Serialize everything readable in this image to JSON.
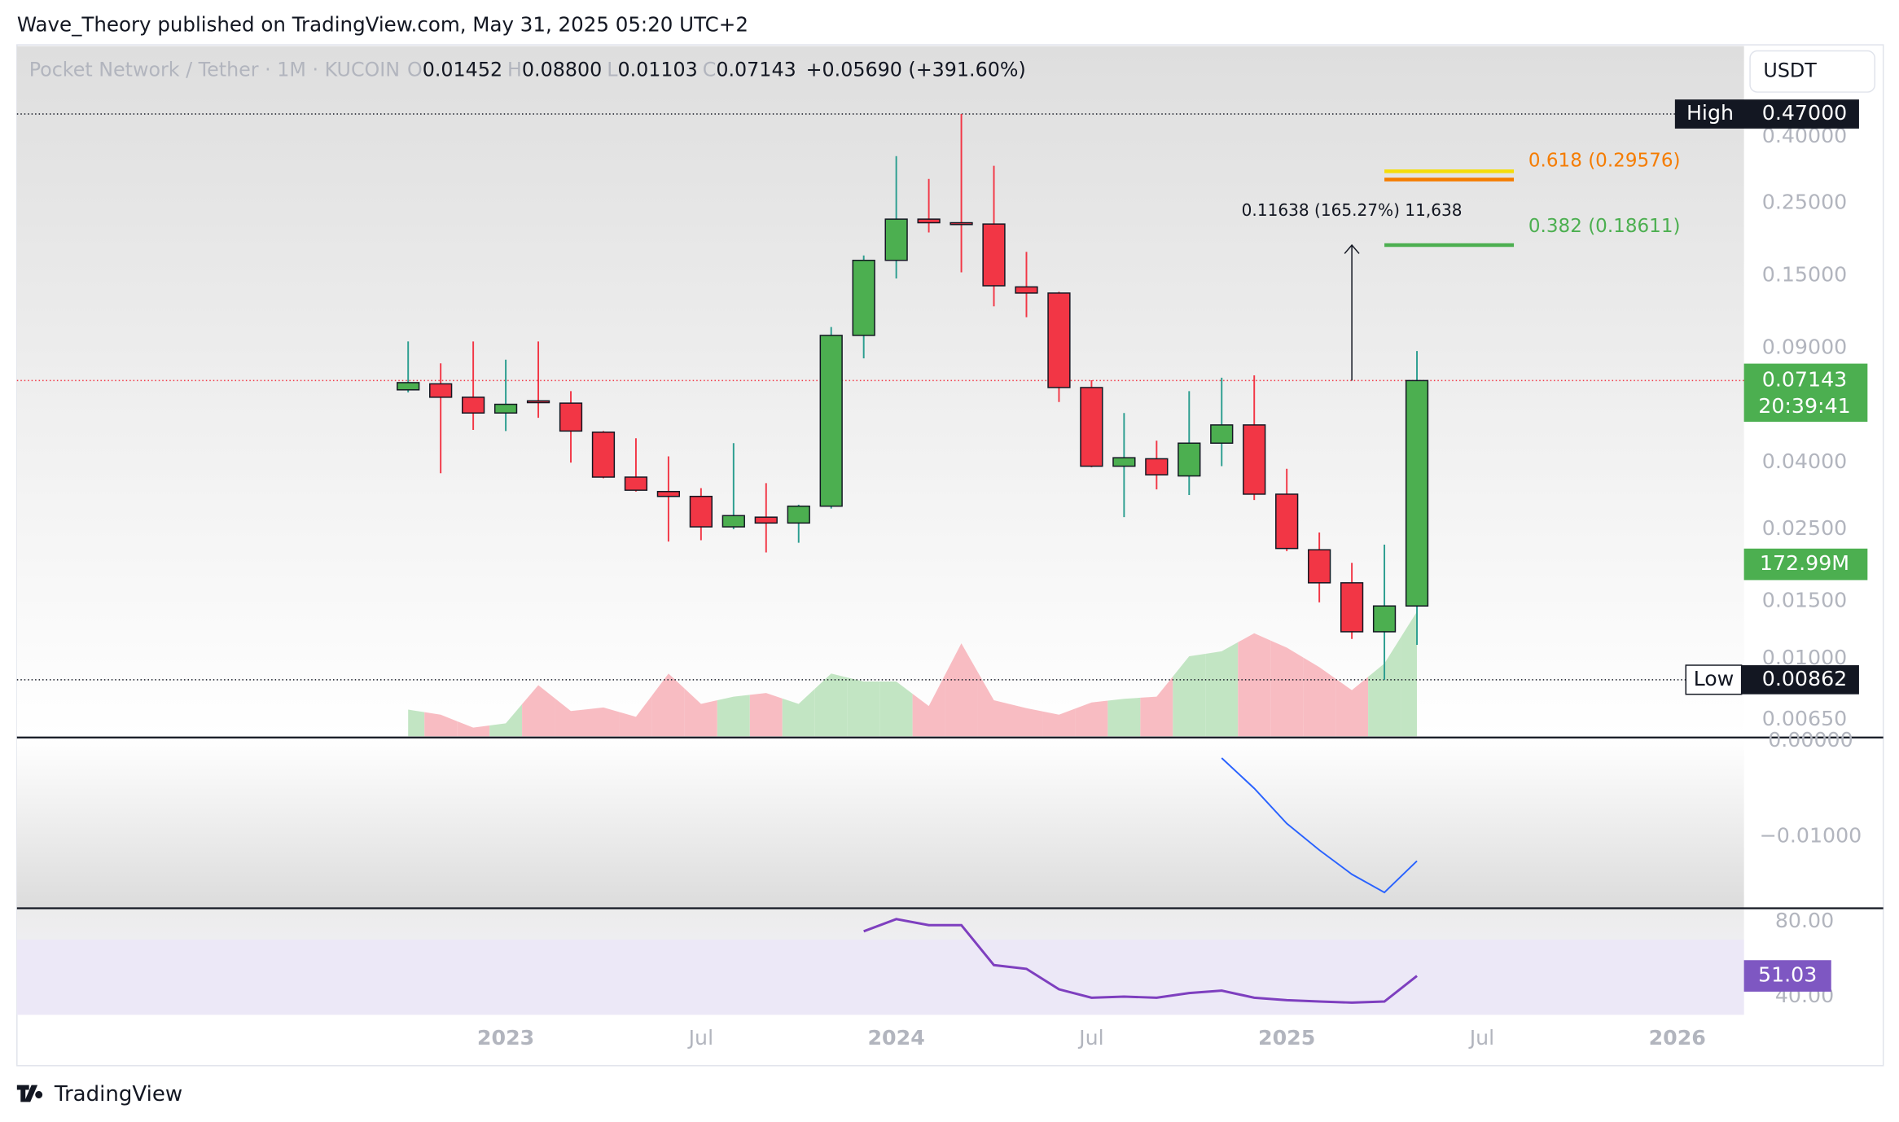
{
  "page": {
    "byline": "Wave_Theory published on TradingView.com, May 31, 2025 05:20 UTC+2",
    "brand": "TradingView",
    "currency": "USDT"
  },
  "chart_data": {
    "type": "candlestick",
    "symbol": "Pocket Network / Tether · 1M · KUCOIN",
    "legend": [
      {
        "key": "O",
        "value": "0.01452"
      },
      {
        "key": "H",
        "value": "0.08800"
      },
      {
        "key": "L",
        "value": "0.01103"
      },
      {
        "key": "C",
        "value": "0.07143"
      }
    ],
    "change": "+0.05690 (+391.60%)",
    "log_scale": true,
    "ylim": [
      0.00578,
      0.76
    ],
    "yticks": [
      {
        "value": 0.4,
        "label": "0.40000"
      },
      {
        "value": 0.25,
        "label": "0.25000"
      },
      {
        "value": 0.15,
        "label": "0.15000"
      },
      {
        "value": 0.09,
        "label": "0.09000"
      },
      {
        "value": 0.04,
        "label": "0.04000"
      },
      {
        "value": 0.025,
        "label": "0.02500"
      },
      {
        "value": 0.015,
        "label": "0.01500"
      },
      {
        "value": 0.01,
        "label": "0.01000"
      },
      {
        "value": 0.0065,
        "label": "0.00650"
      }
    ],
    "up_color": "#4caf50",
    "down_color": "#f23645",
    "categories": [
      null,
      null,
      null,
      "2023",
      null,
      null,
      null,
      null,
      null,
      "Jul",
      null,
      null,
      null,
      null,
      null,
      "2024",
      null,
      null,
      null,
      null,
      null,
      "Jul",
      null,
      null,
      null,
      null,
      null,
      "2025",
      null,
      null,
      null,
      null,
      null,
      "Jul",
      null,
      null,
      null,
      null,
      null,
      "2026",
      null,
      null
    ],
    "open": [
      0.0669,
      0.0698,
      0.0635,
      0.0568,
      0.0619,
      0.0609,
      0.0496,
      0.0361,
      0.0326,
      0.0315,
      0.0254,
      0.0272,
      0.0261,
      0.0294,
      0.0983,
      0.1671,
      0.2236,
      0.218,
      0.216,
      0.1385,
      0.1326,
      0.068,
      0.039,
      0.0411,
      0.0364,
      0.0459,
      0.0522,
      0.032,
      0.0216,
      0.0171,
      0.0121,
      0.01452,
      null,
      null,
      null,
      null,
      null,
      null,
      null,
      null,
      null,
      null
    ],
    "high": [
      0.0942,
      0.0807,
      0.0942,
      0.0828,
      0.0942,
      0.0663,
      0.05,
      0.0475,
      0.0418,
      0.0334,
      0.0459,
      0.0346,
      0.0297,
      0.1043,
      0.1729,
      0.349,
      0.297,
      0.47,
      0.326,
      0.1774,
      0.1338,
      0.0716,
      0.0568,
      0.0467,
      0.0663,
      0.0729,
      0.0741,
      0.0383,
      0.0244,
      0.0197,
      0.0224,
      0.088,
      null,
      null,
      null,
      null,
      null,
      null,
      null,
      null,
      null,
      null
    ],
    "low": [
      0.0657,
      0.0371,
      0.0504,
      0.05,
      0.0549,
      0.04,
      0.0358,
      0.0326,
      0.0229,
      0.0231,
      0.025,
      0.0212,
      0.0227,
      0.0289,
      0.0836,
      0.147,
      0.2035,
      0.1535,
      0.1207,
      0.1118,
      0.0614,
      0.0387,
      0.0272,
      0.0331,
      0.0318,
      0.039,
      0.0307,
      0.0214,
      0.0149,
      0.0115,
      0.00862,
      0.01103,
      null,
      null,
      null,
      null,
      null,
      null,
      null,
      null,
      null,
      null
    ],
    "close": [
      0.0704,
      0.0635,
      0.0568,
      0.0604,
      0.0614,
      0.05,
      0.0361,
      0.0329,
      0.0315,
      0.0254,
      0.0275,
      0.0261,
      0.0294,
      0.0983,
      0.1671,
      0.2236,
      0.218,
      0.216,
      0.1396,
      0.1326,
      0.068,
      0.039,
      0.0414,
      0.0367,
      0.0459,
      0.0522,
      0.032,
      0.0218,
      0.0171,
      0.0121,
      0.01452,
      0.07143,
      null,
      null,
      null,
      null,
      null,
      null,
      null,
      null,
      null,
      null
    ],
    "high_marker": {
      "text": "High",
      "value": 0.47,
      "label": "0.47000"
    },
    "low_marker": {
      "text": "Low"
    },
    "countdown": "20:39:41",
    "volume": {
      "values": [
        37000000,
        30000000,
        12000000,
        18000000,
        71000000,
        35000000,
        40000000,
        27000000,
        87000000,
        45000000,
        55000000,
        60000000,
        45000000,
        87000000,
        76000000,
        76000000,
        42000000,
        129000000,
        50000000,
        39000000,
        30000000,
        47000000,
        52000000,
        55000000,
        111000000,
        118000000,
        143000000,
        123000000,
        96000000,
        64000000,
        101000000,
        172990000,
        null,
        null,
        null,
        null,
        null,
        null,
        null,
        null,
        null,
        null
      ],
      "last_label": "172.99M",
      "ylim": [
        0,
        958000000
      ],
      "up_color": "#c2e5c3",
      "down_color": "#f8bcc2"
    },
    "fib": [
      {
        "label": "0.382 (0.18611)",
        "value": 0.18611,
        "color": "#4caf50"
      },
      {
        "label": "0.618 (0.29576)",
        "value": 0.29576,
        "color": "#f57c00"
      },
      {
        "value": 0.3135,
        "color": "#f5dd0a"
      }
    ],
    "measure": {
      "label": "0.11638 (165.27%) 11,638"
    },
    "oscillator": {
      "color": "#2962ff",
      "ylim": [
        -0.01747,
        0.00025
      ],
      "yticks": [
        {
          "value": 0,
          "label": "0.00000"
        },
        {
          "value": -0.01,
          "label": "−0.01000"
        }
      ],
      "values": [
        null,
        null,
        null,
        null,
        null,
        null,
        null,
        null,
        null,
        null,
        null,
        null,
        null,
        null,
        null,
        null,
        null,
        null,
        null,
        null,
        null,
        null,
        null,
        null,
        null,
        -0.00177,
        -0.00494,
        -0.00861,
        -0.01139,
        -0.01392,
        -0.01582,
        -0.01253,
        null,
        null,
        null,
        null,
        null,
        null,
        null,
        null,
        null,
        null
      ]
    },
    "rsi": {
      "color": "#7e3fbf",
      "ylim": [
        30.3,
        87.1
      ],
      "yticks": [
        {
          "value": 80,
          "label": "80.00"
        },
        {
          "value": 40,
          "label": "40.00"
        }
      ],
      "values": [
        null,
        null,
        null,
        null,
        null,
        null,
        null,
        null,
        null,
        null,
        null,
        null,
        null,
        null,
        74.8,
        81.3,
        78.1,
        78.1,
        56.8,
        54.8,
        43.9,
        39.4,
        40,
        39.4,
        41.9,
        43.2,
        39.4,
        38.1,
        37.4,
        36.8,
        37.4,
        51.03,
        null,
        null,
        null,
        null,
        null,
        null,
        null,
        null,
        null,
        null
      ]
    }
  }
}
